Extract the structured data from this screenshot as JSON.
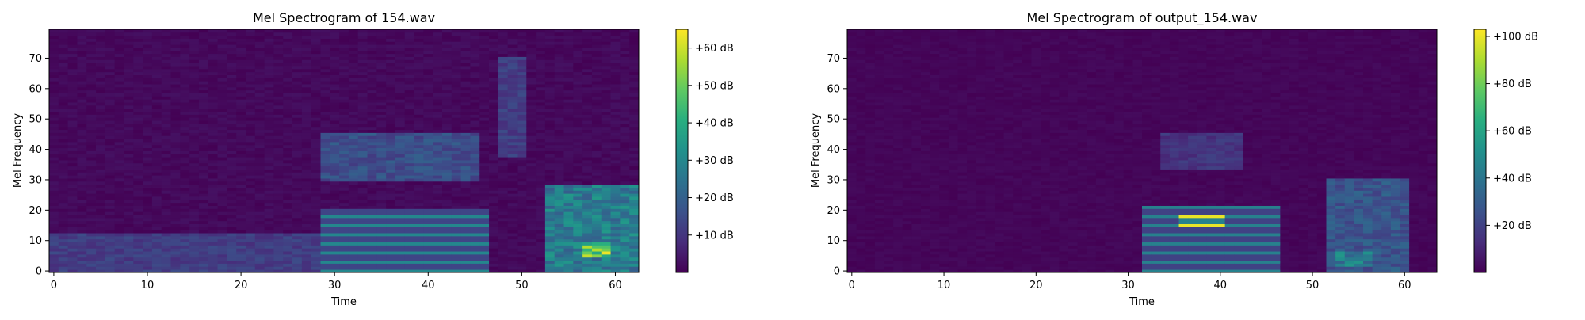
{
  "chart_data": [
    {
      "type": "heatmap",
      "title": "Mel Spectrogram of 154.wav",
      "xlabel": "Time",
      "ylabel": "Mel Frequency",
      "xlim": [
        -0.5,
        62.5
      ],
      "ylim": [
        -0.5,
        79.5
      ],
      "x_ticks": [
        0,
        10,
        20,
        30,
        40,
        50,
        60
      ],
      "y_ticks": [
        0,
        10,
        20,
        30,
        40,
        50,
        60,
        70
      ],
      "colorbar": {
        "min": 0,
        "max": 65,
        "ticks": [
          10,
          20,
          30,
          40,
          50,
          60
        ],
        "tick_labels": [
          "+10 dB",
          "+20 dB",
          "+30 dB",
          "+40 dB",
          "+50 dB",
          "+60 dB"
        ],
        "colormap": "viridis"
      },
      "grid": false,
      "features": [
        {
          "desc": "low band",
          "t": [
            0,
            28
          ],
          "f": [
            0,
            12
          ],
          "level": 15
        },
        {
          "desc": "harmonics",
          "t": [
            29,
            46
          ],
          "f": [
            0,
            20
          ],
          "level": 30
        },
        {
          "desc": "formant band",
          "t": [
            29,
            45
          ],
          "f": [
            30,
            45
          ],
          "level": 20
        },
        {
          "desc": "burst",
          "t": [
            48,
            50
          ],
          "f": [
            38,
            70
          ],
          "level": 15
        },
        {
          "desc": "end segment",
          "t": [
            53,
            62
          ],
          "f": [
            0,
            28
          ],
          "level": 35
        },
        {
          "desc": "peak",
          "t": [
            57,
            59
          ],
          "f": [
            5,
            9
          ],
          "level": 64
        }
      ]
    },
    {
      "type": "heatmap",
      "title": "Mel Spectrogram of output_154.wav",
      "xlabel": "Time",
      "ylabel": "Mel Frequency",
      "xlim": [
        -0.5,
        63.5
      ],
      "ylim": [
        -0.5,
        79.5
      ],
      "x_ticks": [
        0,
        10,
        20,
        30,
        40,
        50,
        60
      ],
      "y_ticks": [
        0,
        10,
        20,
        30,
        40,
        50,
        60,
        70
      ],
      "colorbar": {
        "min": 0,
        "max": 103,
        "ticks": [
          20,
          40,
          60,
          80,
          100
        ],
        "tick_labels": [
          "+20 dB",
          "+40 dB",
          "+60 dB",
          "+80 dB",
          "+100 dB"
        ],
        "colormap": "viridis"
      },
      "grid": false,
      "features": [
        {
          "desc": "harmonics",
          "t": [
            32,
            46
          ],
          "f": [
            0,
            21
          ],
          "level": 45
        },
        {
          "desc": "peak",
          "t": [
            36,
            40
          ],
          "f": [
            15,
            18
          ],
          "level": 100
        },
        {
          "desc": "formant band",
          "t": [
            34,
            42
          ],
          "f": [
            34,
            45
          ],
          "level": 20
        },
        {
          "desc": "end segment",
          "t": [
            52,
            60
          ],
          "f": [
            0,
            30
          ],
          "level": 35
        },
        {
          "desc": "mid",
          "t": [
            53,
            56
          ],
          "f": [
            2,
            6
          ],
          "level": 55
        }
      ]
    }
  ]
}
